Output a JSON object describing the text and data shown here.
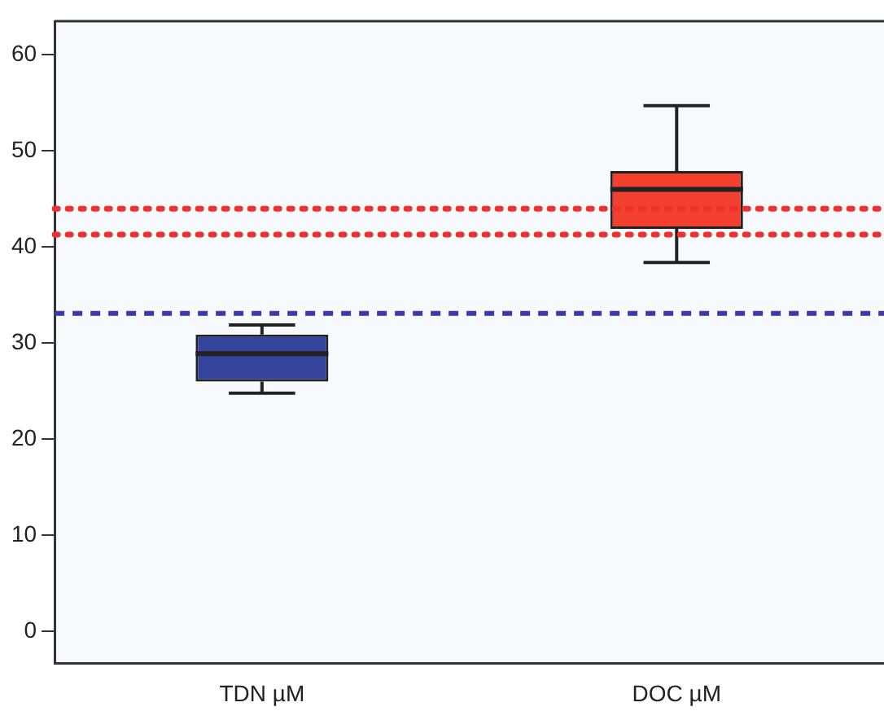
{
  "chart_data": {
    "type": "box",
    "categories": [
      "TDN µM",
      "DOC µM"
    ],
    "boxes": [
      {
        "low": 24.8,
        "q1": 26,
        "median": 28.9,
        "q3": 30.9,
        "high": 31.9
      },
      {
        "low": 38.4,
        "q1": 41.9,
        "median": 46,
        "q3": 47.9,
        "high": 54.7
      }
    ],
    "colors": [
      "#34439c",
      "#f2402e"
    ],
    "ylim": [
      -3.3,
      63.5
    ],
    "yticks": [
      0,
      10,
      20,
      30,
      40,
      50,
      60
    ],
    "ref_lines": [
      {
        "axis": "y",
        "value": 44,
        "color": "#f03030",
        "line_style": "dotted"
      },
      {
        "axis": "y",
        "value": 41.3,
        "color": "#f03030",
        "line_style": "dotted"
      },
      {
        "axis": "y",
        "value": 33.1,
        "color": "#3a3aa8",
        "line_style": "dashed"
      }
    ],
    "grid": false,
    "legend": false
  }
}
